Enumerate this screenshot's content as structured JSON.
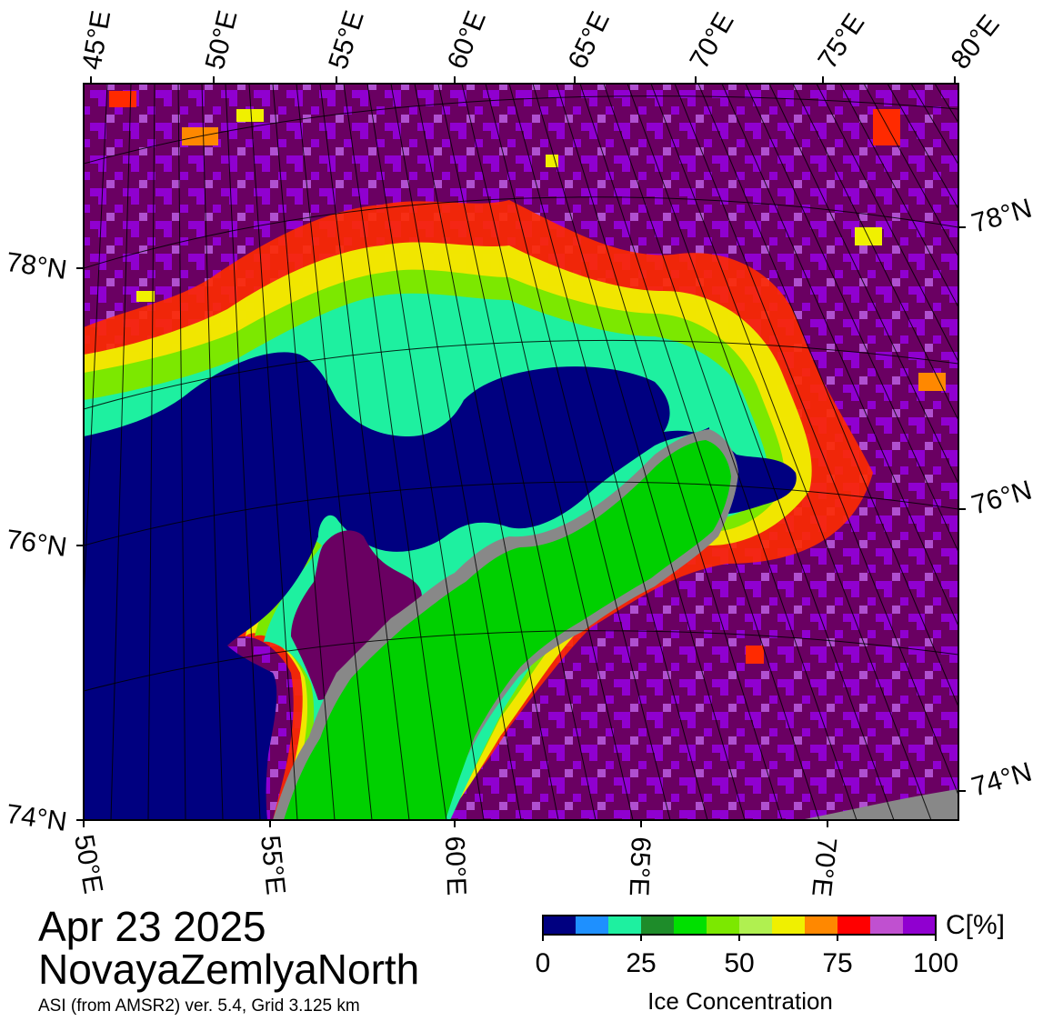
{
  "map": {
    "title_date": "Apr 23 2025",
    "region_name": "NovayaZemlyaNorth",
    "subtitle": "ASI (from AMSR2) ver. 5.4,  Grid 3.125 km",
    "top_lon_labels": [
      "45°E",
      "50°E",
      "55°E",
      "60°E",
      "65°E",
      "70°E",
      "75°E",
      "80°E"
    ],
    "bottom_lon_labels": [
      "50°E",
      "55°E",
      "60°E",
      "65°E",
      "70°E"
    ],
    "left_lat_labels": [
      "78°N",
      "76°N",
      "74°N"
    ],
    "right_lat_labels": [
      "78°N",
      "76°N",
      "74°N"
    ],
    "legend_colors": {
      "open_water": "#000080",
      "land": "#00d000",
      "coast_gray": "#888888",
      "high_ice": "#6a0062"
    }
  },
  "colorbar": {
    "unit_label": "C[%]",
    "title": "Ice Concentration",
    "tick_labels": [
      "0",
      "25",
      "50",
      "75",
      "100"
    ],
    "colors": [
      "#000080",
      "#1e90ff",
      "#1ef0a0",
      "#1e8c2a",
      "#00e000",
      "#7ce800",
      "#b0f050",
      "#f0f000",
      "#ff8800",
      "#ff0000",
      "#c050d0",
      "#9000d0"
    ]
  }
}
